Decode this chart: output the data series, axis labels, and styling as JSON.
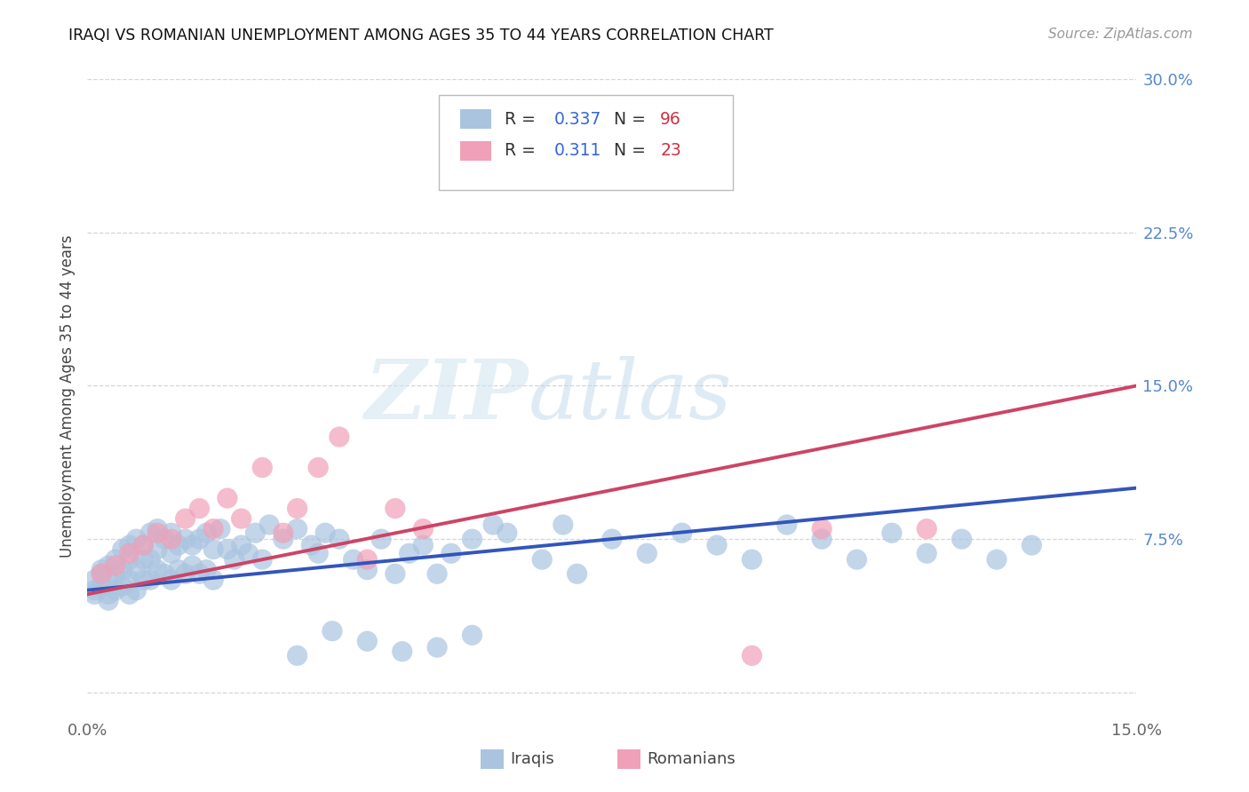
{
  "title": "IRAQI VS ROMANIAN UNEMPLOYMENT AMONG AGES 35 TO 44 YEARS CORRELATION CHART",
  "source": "Source: ZipAtlas.com",
  "ylabel": "Unemployment Among Ages 35 to 44 years",
  "xlim": [
    0.0,
    0.15
  ],
  "ylim": [
    -0.01,
    0.3
  ],
  "yticks_right": [
    0.0,
    0.075,
    0.15,
    0.225,
    0.3
  ],
  "ytick_labels_right": [
    "",
    "7.5%",
    "15.0%",
    "22.5%",
    "30.0%"
  ],
  "grid_color": "#cccccc",
  "background_color": "#ffffff",
  "iraqi_color": "#aac4e0",
  "romanian_color": "#f0a0b8",
  "iraqi_line_color": "#3355bb",
  "romanian_line_color": "#cc4466",
  "iraqi_R": 0.337,
  "iraqi_N": 96,
  "romanian_R": 0.311,
  "romanian_N": 23,
  "iraqi_scatter_x": [
    0.001,
    0.001,
    0.001,
    0.002,
    0.002,
    0.002,
    0.003,
    0.003,
    0.003,
    0.003,
    0.004,
    0.004,
    0.004,
    0.005,
    0.005,
    0.005,
    0.006,
    0.006,
    0.006,
    0.006,
    0.007,
    0.007,
    0.007,
    0.008,
    0.008,
    0.008,
    0.009,
    0.009,
    0.009,
    0.01,
    0.01,
    0.01,
    0.011,
    0.011,
    0.012,
    0.012,
    0.012,
    0.013,
    0.013,
    0.014,
    0.014,
    0.015,
    0.015,
    0.016,
    0.016,
    0.017,
    0.017,
    0.018,
    0.018,
    0.019,
    0.02,
    0.021,
    0.022,
    0.023,
    0.024,
    0.025,
    0.026,
    0.028,
    0.03,
    0.032,
    0.033,
    0.034,
    0.036,
    0.038,
    0.04,
    0.042,
    0.044,
    0.046,
    0.048,
    0.05,
    0.052,
    0.055,
    0.058,
    0.06,
    0.065,
    0.068,
    0.07,
    0.075,
    0.08,
    0.085,
    0.09,
    0.095,
    0.1,
    0.105,
    0.11,
    0.115,
    0.12,
    0.125,
    0.13,
    0.135,
    0.05,
    0.04,
    0.045,
    0.055,
    0.035,
    0.03
  ],
  "iraqi_scatter_y": [
    0.05,
    0.055,
    0.048,
    0.058,
    0.052,
    0.06,
    0.045,
    0.055,
    0.048,
    0.062,
    0.05,
    0.058,
    0.065,
    0.052,
    0.06,
    0.07,
    0.048,
    0.055,
    0.065,
    0.072,
    0.05,
    0.06,
    0.075,
    0.055,
    0.065,
    0.072,
    0.055,
    0.065,
    0.078,
    0.06,
    0.07,
    0.08,
    0.058,
    0.075,
    0.055,
    0.068,
    0.078,
    0.06,
    0.072,
    0.058,
    0.075,
    0.062,
    0.072,
    0.058,
    0.075,
    0.06,
    0.078,
    0.055,
    0.07,
    0.08,
    0.07,
    0.065,
    0.072,
    0.068,
    0.078,
    0.065,
    0.082,
    0.075,
    0.08,
    0.072,
    0.068,
    0.078,
    0.075,
    0.065,
    0.06,
    0.075,
    0.058,
    0.068,
    0.072,
    0.058,
    0.068,
    0.075,
    0.082,
    0.078,
    0.065,
    0.082,
    0.058,
    0.075,
    0.068,
    0.078,
    0.072,
    0.065,
    0.082,
    0.075,
    0.065,
    0.078,
    0.068,
    0.075,
    0.065,
    0.072,
    0.022,
    0.025,
    0.02,
    0.028,
    0.03,
    0.018
  ],
  "romanian_scatter_x": [
    0.002,
    0.004,
    0.006,
    0.008,
    0.01,
    0.012,
    0.014,
    0.016,
    0.018,
    0.02,
    0.022,
    0.025,
    0.028,
    0.03,
    0.033,
    0.036,
    0.04,
    0.044,
    0.048,
    0.06,
    0.095,
    0.105,
    0.12
  ],
  "romanian_scatter_y": [
    0.058,
    0.062,
    0.068,
    0.072,
    0.078,
    0.075,
    0.085,
    0.09,
    0.08,
    0.095,
    0.085,
    0.11,
    0.078,
    0.09,
    0.11,
    0.125,
    0.065,
    0.09,
    0.08,
    0.27,
    0.018,
    0.08,
    0.08
  ],
  "watermark_zip": "ZIP",
  "watermark_atlas": "atlas"
}
